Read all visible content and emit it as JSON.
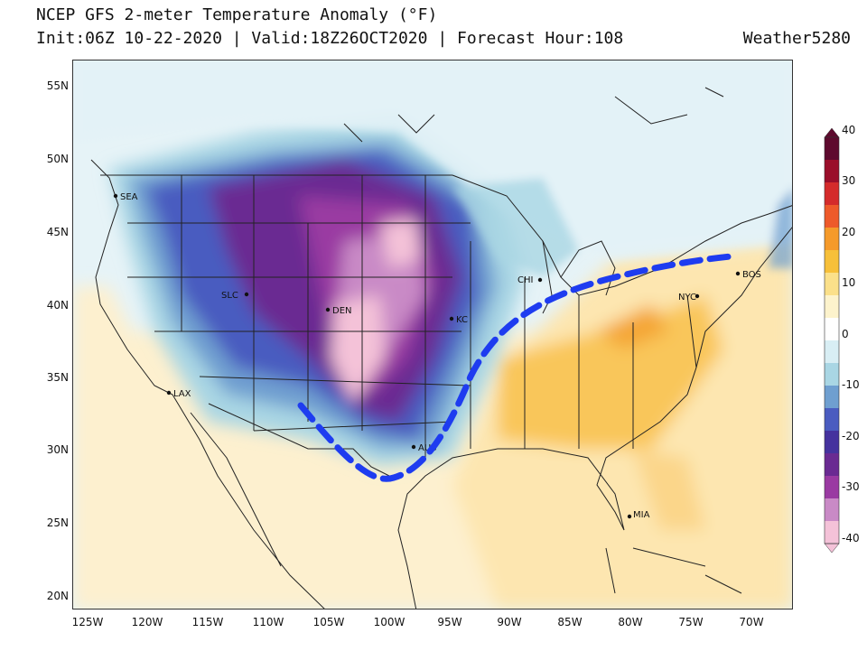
{
  "title_line1": "NCEP GFS 2-meter Temperature Anomaly (°F)",
  "title_line2": "Init:06Z 10-22-2020 | Valid:18Z26OCT2020 | Forecast Hour:108",
  "credit": "Weather5280",
  "lat_labels": [
    "55N",
    "50N",
    "45N",
    "40N",
    "35N",
    "30N",
    "25N",
    "20N"
  ],
  "lon_labels": [
    "125W",
    "120W",
    "115W",
    "110W",
    "105W",
    "100W",
    "95W",
    "90W",
    "85W",
    "80W",
    "75W",
    "70W"
  ],
  "cities": [
    "SEA",
    "SLC",
    "DEN",
    "KC",
    "CHI",
    "NYC",
    "BOS",
    "LAX",
    "AUS",
    "MIA"
  ],
  "colorbar": {
    "labels": [
      "40",
      "30",
      "20",
      "10",
      "0",
      "-10",
      "-20",
      "-30",
      "-40"
    ],
    "colors": [
      "#5e0a2e",
      "#9a0e2a",
      "#d42b2b",
      "#ee5a2a",
      "#f59a2a",
      "#f7c03a",
      "#fbe08a",
      "#fdf3cc",
      "#ffffff",
      "#d8eef4",
      "#a9d6e4",
      "#6f9fd0",
      "#4a5cc0",
      "#45329e",
      "#6a2a92",
      "#9a3aa2",
      "#c98ac6",
      "#f4c2d8"
    ]
  },
  "annotation": "dashed blue cold-front line"
}
